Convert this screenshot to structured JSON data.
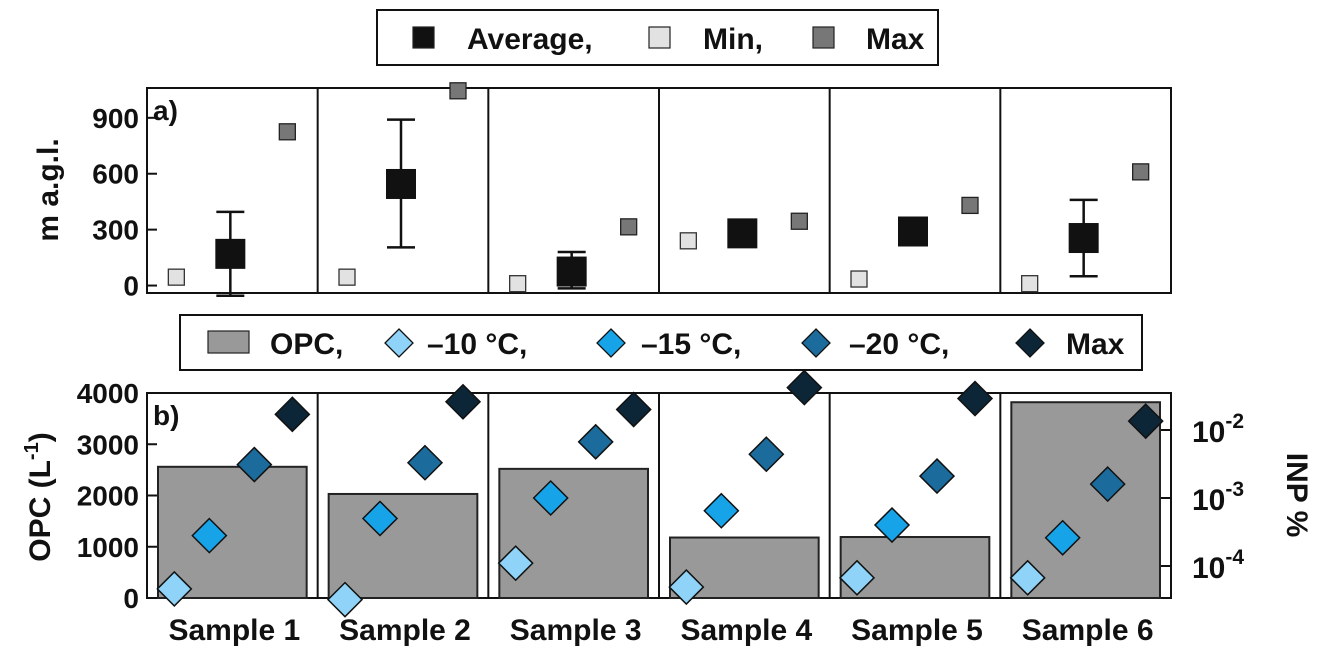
{
  "chart_data": [
    {
      "panel": "a)",
      "type": "scatter",
      "ylabel": "m a.g.l.",
      "ylim": [
        -40,
        1060
      ],
      "yticks": [
        "0",
        "300",
        "600",
        "900"
      ],
      "legend": [
        "Average,",
        "Min,",
        "Max"
      ],
      "legend_placement": "top-center",
      "colors": {
        "average": "#111111",
        "min": "#e2e2e2",
        "max": "#777777"
      },
      "categories": [
        "Sample 1",
        "Sample 2",
        "Sample 3",
        "Sample 4",
        "Sample 5",
        "Sample 6"
      ],
      "series": [
        {
          "name": "Average,",
          "values": [
            170,
            545,
            75,
            280,
            290,
            255
          ],
          "err_low": [
            -55,
            205,
            -15,
            280,
            290,
            50
          ],
          "err_high": [
            395,
            890,
            180,
            280,
            290,
            460
          ]
        },
        {
          "name": "Min,",
          "values": [
            45,
            45,
            10,
            240,
            35,
            10
          ]
        },
        {
          "name": "Max",
          "values": [
            825,
            1045,
            315,
            345,
            430,
            610
          ]
        }
      ]
    },
    {
      "panel": "b)",
      "type": "bar",
      "ylabel": "OPC (L",
      "ylabel_sup": "-1",
      "ylabel_close": ")",
      "ylim": [
        0,
        4000
      ],
      "yticks": [
        "0",
        "1000",
        "2000",
        "3000",
        "4000"
      ],
      "y2label": "INP %",
      "y2scale": "log",
      "y2ticks": [
        {
          "base": "10",
          "exp": "-4",
          "value": 0.0001
        },
        {
          "base": "10",
          "exp": "-3",
          "value": 0.001
        },
        {
          "base": "10",
          "exp": "-2",
          "value": 0.01
        }
      ],
      "legend": [
        "OPC,",
        "–10 °C,",
        "–15 °C,",
        "–20 °C,",
        "Max"
      ],
      "legend_placement": "top-center",
      "colors": {
        "opc": "#999999",
        "t10": "#8fd3f8",
        "t15": "#17a3e8",
        "t20": "#1b6c9c",
        "max": "#0c2638"
      },
      "categories": [
        "Sample 1",
        "Sample 2",
        "Sample 3",
        "Sample 4",
        "Sample 5",
        "Sample 6"
      ],
      "opc_values": [
        2560,
        2030,
        2520,
        1180,
        1190,
        3820
      ],
      "inp_series": [
        {
          "name": "–10 °C,",
          "values": [
            4.6e-05,
            3.2e-05,
            0.00011,
            4.9e-05,
            6.7e-05,
            6.7e-05
          ]
        },
        {
          "name": "–15 °C,",
          "values": [
            0.00028,
            0.0005,
            0.001,
            0.00065,
            0.0004,
            0.00026
          ]
        },
        {
          "name": "–20 °C,",
          "values": [
            0.0031,
            0.0033,
            0.0067,
            0.0044,
            0.0021,
            0.0016
          ]
        },
        {
          "name": "Max",
          "values": [
            0.017,
            0.026,
            0.02,
            0.042,
            0.029,
            0.0135
          ]
        }
      ]
    }
  ]
}
